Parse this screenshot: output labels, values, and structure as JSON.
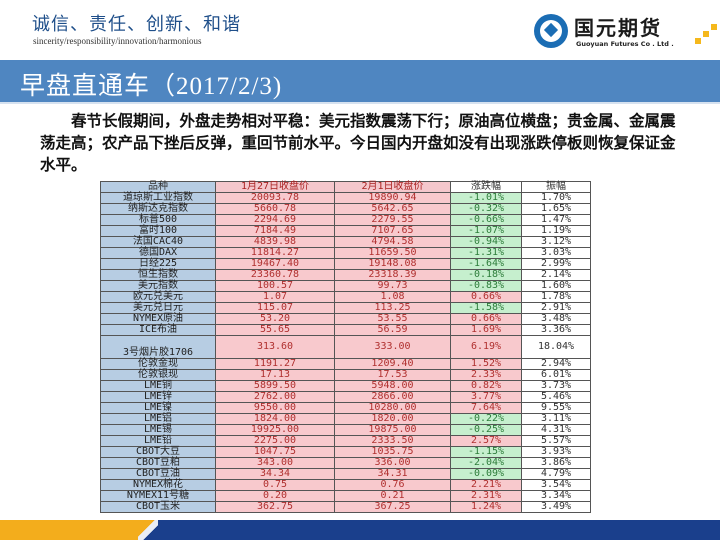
{
  "header": {
    "motto_cn": "诚信、责任、创新、和谐",
    "motto_en": "sincerity/responsibility/innovation/harmonious",
    "logo_cn": "国元期货",
    "logo_en": "Guoyuan Futures Co . Ltd ."
  },
  "title": "早盘直通车（2017/2/3)",
  "intro": "春节长假期间，外盘走势相对平稳：美元指数震荡下行；原油高位横盘；贵金属、金属震荡走高；农产品下挫后反弹，重回节前水平。今日国内开盘如没有出现涨跌停板则恢复保证金水平。",
  "table": {
    "headers": [
      "品种",
      "1月27日收盘价",
      "2月1日收盘价",
      "涨跌幅",
      "振幅"
    ],
    "rows": [
      {
        "name": "道琼斯工业指数",
        "p1": "20093.78",
        "p2": "19890.94",
        "chg": "-1.01%",
        "dir": "down",
        "amp": "1.70%"
      },
      {
        "name": "纳斯达克指数",
        "p1": "5660.78",
        "p2": "5642.65",
        "chg": "-0.32%",
        "dir": "down",
        "amp": "1.65%"
      },
      {
        "name": "标普500",
        "p1": "2294.69",
        "p2": "2279.55",
        "chg": "-0.66%",
        "dir": "down",
        "amp": "1.47%"
      },
      {
        "name": "富时100",
        "p1": "7184.49",
        "p2": "7107.65",
        "chg": "-1.07%",
        "dir": "down",
        "amp": "1.19%"
      },
      {
        "name": "法国CAC40",
        "p1": "4839.98",
        "p2": "4794.58",
        "chg": "-0.94%",
        "dir": "down",
        "amp": "3.12%"
      },
      {
        "name": "德国DAX",
        "p1": "11814.27",
        "p2": "11659.50",
        "chg": "-1.31%",
        "dir": "down",
        "amp": "3.03%"
      },
      {
        "name": "日经225",
        "p1": "19467.40",
        "p2": "19148.08",
        "chg": "-1.64%",
        "dir": "down",
        "amp": "2.99%"
      },
      {
        "name": "恒生指数",
        "p1": "23360.78",
        "p2": "23318.39",
        "chg": "-0.18%",
        "dir": "down",
        "amp": "2.14%"
      },
      {
        "name": "美元指数",
        "p1": "100.57",
        "p2": "99.73",
        "chg": "-0.83%",
        "dir": "down",
        "amp": "1.60%"
      },
      {
        "name": "欧元兑美元",
        "p1": "1.07",
        "p2": "1.08",
        "chg": "0.66%",
        "dir": "up",
        "amp": "1.78%"
      },
      {
        "name": "美元兑日元",
        "p1": "115.07",
        "p2": "113.25",
        "chg": "-1.58%",
        "dir": "down",
        "amp": "2.91%"
      },
      {
        "name": "NYMEX原油",
        "p1": "53.20",
        "p2": "53.55",
        "chg": "0.66%",
        "dir": "up",
        "amp": "3.48%"
      },
      {
        "name": "ICE布油",
        "p1": "55.65",
        "p2": "56.59",
        "chg": "1.69%",
        "dir": "up",
        "amp": "3.36%"
      },
      {
        "name": "3号烟片胶1706",
        "p1": "313.60",
        "p2": "333.00",
        "chg": "6.19%",
        "dir": "up",
        "amp": "18.04%",
        "tall": true
      },
      {
        "name": "伦敦金现",
        "p1": "1191.27",
        "p2": "1209.40",
        "chg": "1.52%",
        "dir": "up",
        "amp": "2.94%"
      },
      {
        "name": "伦敦银现",
        "p1": "17.13",
        "p2": "17.53",
        "chg": "2.33%",
        "dir": "up",
        "amp": "6.01%"
      },
      {
        "name": "LME铜",
        "p1": "5899.50",
        "p2": "5948.00",
        "chg": "0.82%",
        "dir": "up",
        "amp": "3.73%"
      },
      {
        "name": "LME锌",
        "p1": "2762.00",
        "p2": "2866.00",
        "chg": "3.77%",
        "dir": "up",
        "amp": "5.46%"
      },
      {
        "name": "LME镍",
        "p1": "9550.00",
        "p2": "10280.00",
        "chg": "7.64%",
        "dir": "up",
        "amp": "9.55%"
      },
      {
        "name": "LME铝",
        "p1": "1824.00",
        "p2": "1820.00",
        "chg": "-0.22%",
        "dir": "down",
        "amp": "3.11%"
      },
      {
        "name": "LME锡",
        "p1": "19925.00",
        "p2": "19875.00",
        "chg": "-0.25%",
        "dir": "down",
        "amp": "4.31%"
      },
      {
        "name": "LME铅",
        "p1": "2275.00",
        "p2": "2333.50",
        "chg": "2.57%",
        "dir": "up",
        "amp": "5.57%"
      },
      {
        "name": "CBOT大豆",
        "p1": "1047.75",
        "p2": "1035.75",
        "chg": "-1.15%",
        "dir": "down",
        "amp": "3.93%"
      },
      {
        "name": "CBOT豆粕",
        "p1": "343.00",
        "p2": "336.00",
        "chg": "-2.04%",
        "dir": "down",
        "amp": "3.86%"
      },
      {
        "name": "CBOT豆油",
        "p1": "34.34",
        "p2": "34.31",
        "chg": "-0.09%",
        "dir": "down",
        "amp": "4.79%"
      },
      {
        "name": "NYMEX棉花",
        "p1": "0.75",
        "p2": "0.76",
        "chg": "2.21%",
        "dir": "up",
        "amp": "3.54%"
      },
      {
        "name": "NYMEX11号糖",
        "p1": "0.20",
        "p2": "0.21",
        "chg": "2.31%",
        "dir": "up",
        "amp": "3.34%"
      },
      {
        "name": "CBOT玉米",
        "p1": "362.75",
        "p2": "367.25",
        "chg": "1.24%",
        "dir": "up",
        "amp": "3.49%"
      }
    ]
  },
  "colors": {
    "title_bar": "#4f86c1",
    "name_col": "#b7cde3",
    "price_bg": "#f8c9cd",
    "price_text": "#b0302f",
    "down_bg": "#c6efce",
    "down_text": "#2e7d3b",
    "footer_orange": "#f3ad1c",
    "footer_navy": "#1a3f8c"
  }
}
